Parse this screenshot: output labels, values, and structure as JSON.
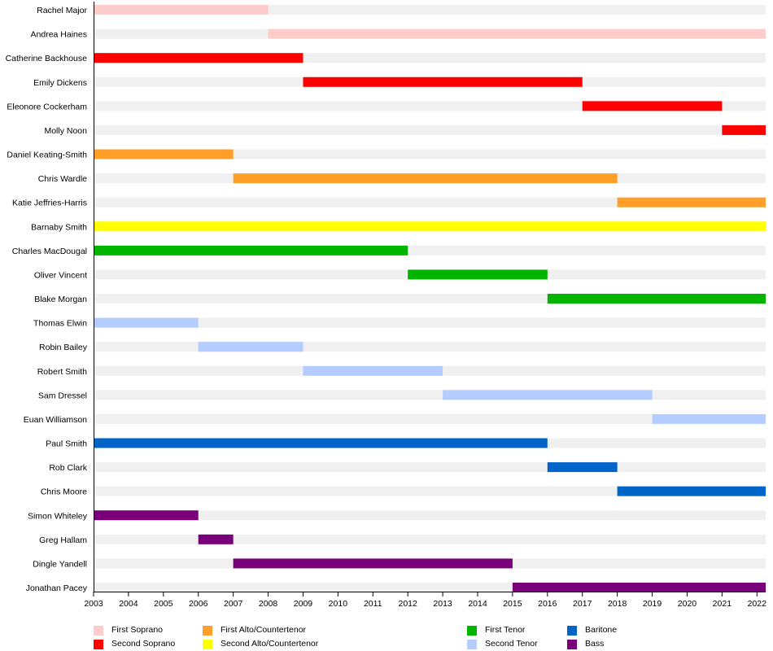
{
  "chart_data": {
    "type": "bar",
    "subtype": "timeline",
    "title": "",
    "xlabel": "",
    "ylabel": "",
    "xlim": [
      2003,
      2022.25
    ],
    "x_ticks": [
      "2003",
      "2004",
      "2005",
      "2006",
      "2007",
      "2008",
      "2009",
      "2010",
      "2011",
      "2012",
      "2013",
      "2014",
      "2015",
      "2016",
      "2017",
      "2018",
      "2019",
      "2020",
      "2021",
      "2022"
    ],
    "voices": [
      {
        "name": "First Soprano",
        "color": "#ffcccc"
      },
      {
        "name": "Second Soprano",
        "color": "#ff0000"
      },
      {
        "name": "First Alto/Countertenor",
        "color": "#ff9f2a"
      },
      {
        "name": "Second Alto/Countertenor",
        "color": "#ffff00"
      },
      {
        "name": "First Tenor",
        "color": "#00b400"
      },
      {
        "name": "Second Tenor",
        "color": "#b4ccff"
      },
      {
        "name": "Baritone",
        "color": "#0064c8"
      },
      {
        "name": "Bass",
        "color": "#780078"
      }
    ],
    "members": [
      {
        "name": "Rachel Major",
        "voice": 0,
        "start": 2003,
        "end": 2008
      },
      {
        "name": "Andrea Haines",
        "voice": 0,
        "start": 2008,
        "end": 2022.25
      },
      {
        "name": "Catherine Backhouse",
        "voice": 1,
        "start": 2003,
        "end": 2009
      },
      {
        "name": "Emily Dickens",
        "voice": 1,
        "start": 2009,
        "end": 2017
      },
      {
        "name": "Eleonore Cockerham",
        "voice": 1,
        "start": 2017,
        "end": 2021
      },
      {
        "name": "Molly Noon",
        "voice": 1,
        "start": 2021,
        "end": 2022.25
      },
      {
        "name": "Daniel Keating-Smith",
        "voice": 2,
        "start": 2003,
        "end": 2007
      },
      {
        "name": "Chris Wardle",
        "voice": 2,
        "start": 2007,
        "end": 2018
      },
      {
        "name": "Katie Jeffries-Harris",
        "voice": 2,
        "start": 2018,
        "end": 2022.25
      },
      {
        "name": "Barnaby Smith",
        "voice": 3,
        "start": 2003,
        "end": 2022.25
      },
      {
        "name": "Charles MacDougal",
        "voice": 4,
        "start": 2003,
        "end": 2012
      },
      {
        "name": "Oliver Vincent",
        "voice": 4,
        "start": 2012,
        "end": 2016
      },
      {
        "name": "Blake Morgan",
        "voice": 4,
        "start": 2016,
        "end": 2022.25
      },
      {
        "name": "Thomas Elwin",
        "voice": 5,
        "start": 2003,
        "end": 2006
      },
      {
        "name": "Robin Bailey",
        "voice": 5,
        "start": 2006,
        "end": 2009
      },
      {
        "name": "Robert Smith",
        "voice": 5,
        "start": 2009,
        "end": 2013
      },
      {
        "name": "Sam Dressel",
        "voice": 5,
        "start": 2013,
        "end": 2019
      },
      {
        "name": "Euan Williamson",
        "voice": 5,
        "start": 2019,
        "end": 2022.25
      },
      {
        "name": "Paul Smith",
        "voice": 6,
        "start": 2003,
        "end": 2016
      },
      {
        "name": "Rob Clark",
        "voice": 6,
        "start": 2016,
        "end": 2018
      },
      {
        "name": "Chris Moore",
        "voice": 6,
        "start": 2018,
        "end": 2022.25
      },
      {
        "name": "Simon Whiteley",
        "voice": 7,
        "start": 2003,
        "end": 2006
      },
      {
        "name": "Greg Hallam",
        "voice": 7,
        "start": 2006,
        "end": 2007
      },
      {
        "name": "Dingle Yandell",
        "voice": 7,
        "start": 2007,
        "end": 2015
      },
      {
        "name": "Jonathan Pacey",
        "voice": 7,
        "start": 2015,
        "end": 2022.25
      }
    ],
    "background_color": "#f0f0f0",
    "legend_position": "bottom"
  }
}
